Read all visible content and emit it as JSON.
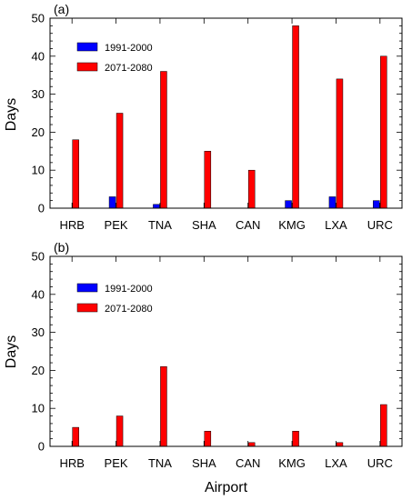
{
  "chart_data": [
    {
      "type": "bar",
      "panel_label": "(a)",
      "categories": [
        "HRB",
        "PEK",
        "TNA",
        "SHA",
        "CAN",
        "KMG",
        "LXA",
        "URC"
      ],
      "series": [
        {
          "name": "1991-2000",
          "color": "#0000ff",
          "values": [
            0,
            3,
            1,
            0,
            0,
            2,
            3,
            2
          ]
        },
        {
          "name": "2071-2080",
          "color": "#ff0000",
          "values": [
            18,
            25,
            36,
            15,
            10,
            48,
            34,
            40
          ]
        }
      ],
      "ylabel": "Days",
      "xlabel": "",
      "ylim": [
        0,
        50
      ],
      "yticks": [
        "0",
        "10",
        "20",
        "30",
        "40",
        "50"
      ],
      "grid": false,
      "legend_position": "top-left"
    },
    {
      "type": "bar",
      "panel_label": "(b)",
      "categories": [
        "HRB",
        "PEK",
        "TNA",
        "SHA",
        "CAN",
        "KMG",
        "LXA",
        "URC"
      ],
      "series": [
        {
          "name": "1991-2000",
          "color": "#0000ff",
          "values": [
            0,
            0,
            0,
            0,
            0,
            0,
            0,
            0
          ]
        },
        {
          "name": "2071-2080",
          "color": "#ff0000",
          "values": [
            5,
            8,
            21,
            4,
            1,
            4,
            1,
            11
          ]
        }
      ],
      "ylabel": "Days",
      "xlabel": "Airport",
      "ylim": [
        0,
        50
      ],
      "yticks": [
        "0",
        "10",
        "20",
        "30",
        "40",
        "50"
      ],
      "grid": false,
      "legend_position": "top-left"
    }
  ]
}
